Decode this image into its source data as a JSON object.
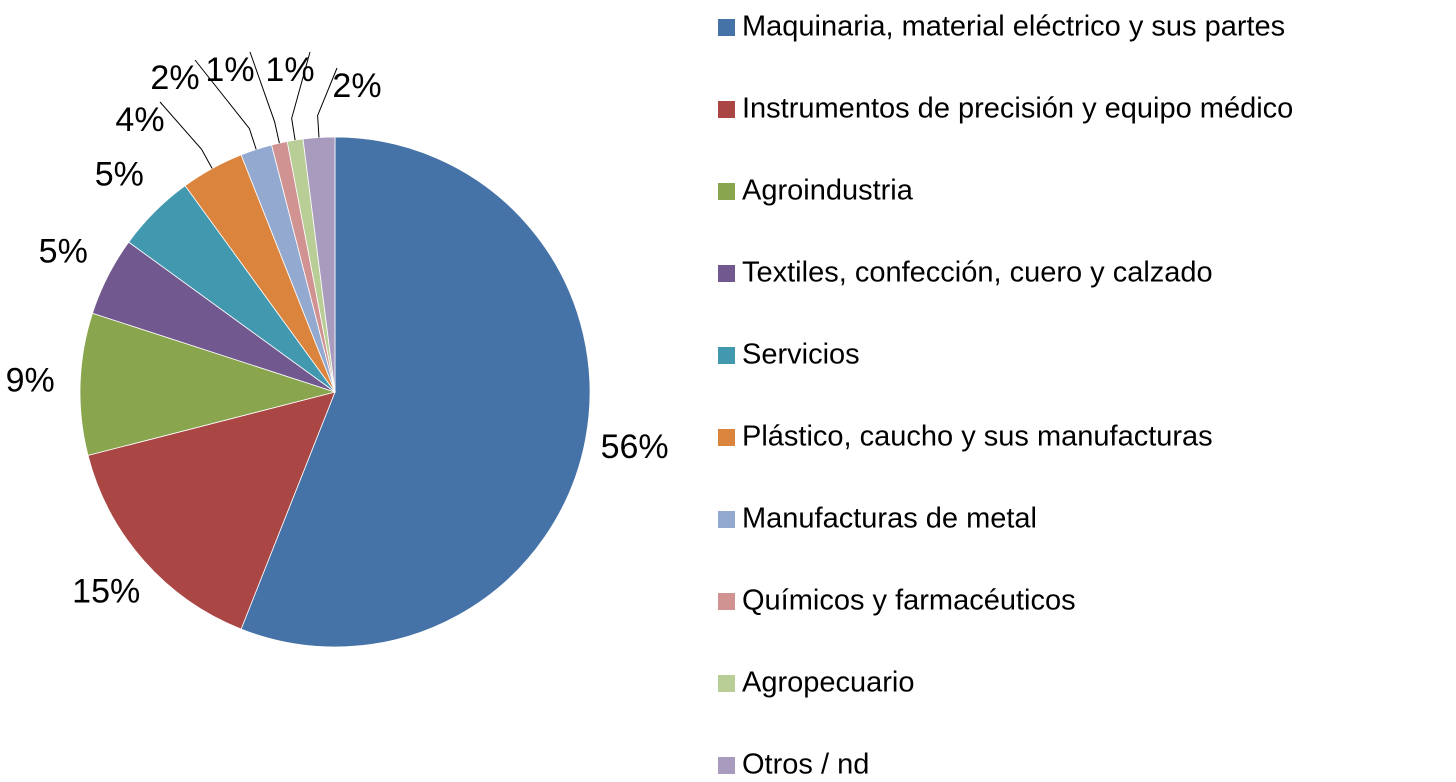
{
  "chart_data": {
    "type": "pie",
    "categories": [
      "Maquinaria, material eléctrico y sus partes",
      "Instrumentos de precisión y equipo médico",
      "Agroindustria",
      "Textiles, confección, cuero y calzado",
      "Servicios",
      "Plástico, caucho y sus manufacturas",
      "Manufacturas de metal",
      "Químicos y farmacéuticos",
      "Agropecuario",
      "Otros / nd"
    ],
    "values": [
      56,
      15,
      9,
      5,
      5,
      4,
      2,
      1,
      1,
      2
    ],
    "value_labels": [
      "56%",
      "15%",
      "9%",
      "5%",
      "5%",
      "4%",
      "2%",
      "1%",
      "1%",
      "2%"
    ],
    "colors": [
      "#4572a7",
      "#aa4643",
      "#89a54e",
      "#71588f",
      "#4198af",
      "#db843d",
      "#93a9cf",
      "#d19392",
      "#b9cd96",
      "#a99bbd"
    ],
    "legend": "right"
  }
}
